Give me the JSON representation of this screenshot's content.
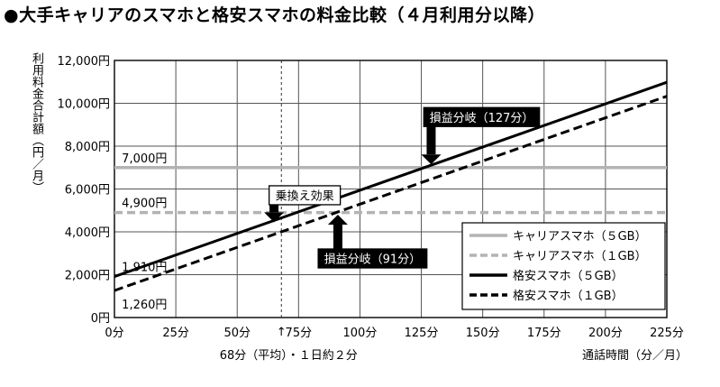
{
  "chart_data": {
    "type": "line",
    "title": "●大手キャリアのスマホと格安スマホの料金比較（４月利用分以降）",
    "ylabel": "利用料金合計額（円／月）",
    "xlabel": "通話時間（分／月）",
    "x_ticks": [
      0,
      25,
      50,
      75,
      100,
      125,
      150,
      175,
      200,
      225
    ],
    "x_tick_labels": [
      "0分",
      "25分",
      "50分",
      "75分",
      "100分",
      "125分",
      "150分",
      "175分",
      "200分",
      "225分"
    ],
    "y_ticks": [
      0,
      2000,
      4000,
      6000,
      8000,
      10000,
      12000
    ],
    "y_tick_labels": [
      "0円",
      "2,000円",
      "4,000円",
      "6,000円",
      "8,000円",
      "10,000円",
      "12,000円"
    ],
    "xlim": [
      0,
      225
    ],
    "ylim": [
      0,
      12000
    ],
    "grid": true,
    "legend_position": "bottom-right",
    "series": [
      {
        "name": "キャリアスマホ（５GB）",
        "color": "#b3b3b3",
        "style": "solid",
        "x": [
          0,
          225
        ],
        "y": [
          7000,
          7000
        ]
      },
      {
        "name": "キャリアスマホ（１GB）",
        "color": "#b3b3b3",
        "style": "dashed",
        "x": [
          0,
          225
        ],
        "y": [
          4900,
          4900
        ]
      },
      {
        "name": "格安スマホ（５GB）",
        "color": "#000000",
        "style": "solid",
        "x": [
          0,
          225
        ],
        "y": [
          1910,
          10980
        ]
      },
      {
        "name": "格安スマホ（１GB）",
        "color": "#000000",
        "style": "dashed",
        "x": [
          0,
          225
        ],
        "y": [
          1260,
          10330
        ]
      }
    ],
    "value_labels": [
      {
        "text": "7,000円",
        "x": 3,
        "y": 7000,
        "pos": "above"
      },
      {
        "text": "4,900円",
        "x": 3,
        "y": 4900,
        "pos": "above"
      },
      {
        "text": "1,910円",
        "x": 3,
        "y": 1910,
        "pos": "above"
      },
      {
        "text": "1,260円",
        "x": 3,
        "y": 1260,
        "pos": "below"
      }
    ],
    "annotations": [
      {
        "text": "損益分岐（127分）",
        "style": "filled",
        "box_x": 126,
        "box_y": 9800,
        "arrow_x": 129,
        "arrow_tip_y": 7150
      },
      {
        "text": "乗換え効果",
        "style": "outline",
        "box_x": 63,
        "box_y": 6150,
        "arrow_x": 65,
        "arrow_tip_y": 4450
      },
      {
        "text": "損益分岐（91分）",
        "style": "filled",
        "box_x": 83,
        "box_y": 3200,
        "arrow_x": 91,
        "arrow_tip_y": 4800
      }
    ],
    "reference_line": {
      "x": 68,
      "label": "↑\n68分（平均）・１日約２分"
    }
  }
}
